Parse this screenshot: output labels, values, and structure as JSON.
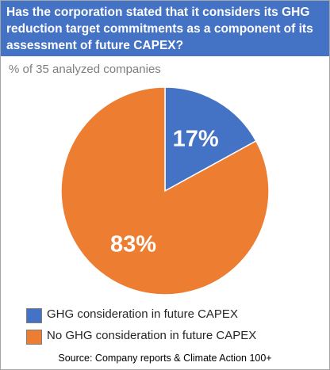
{
  "header": {
    "title": "Has the corporation stated that it considers its GHG reduction target commitments as a component of its assessment of future CAPEX?"
  },
  "subtitle": "% of 35 analyzed companies",
  "source": "Source: Company reports & Climate Action 100+",
  "chart_data": {
    "type": "pie",
    "title": "Has the corporation stated that it considers its GHG reduction target commitments as a component of its assessment of future CAPEX?",
    "subtitle": "% of 35 analyzed companies",
    "slices": [
      {
        "label": "GHG consideration in future CAPEX",
        "value": 17,
        "display": "17%",
        "color": "#4472c4"
      },
      {
        "label": "No GHG consideration in future CAPEX",
        "value": 83,
        "display": "83%",
        "color": "#ed7d31"
      }
    ],
    "legend_position": "bottom-left",
    "data_label_color": "#ffffff"
  }
}
